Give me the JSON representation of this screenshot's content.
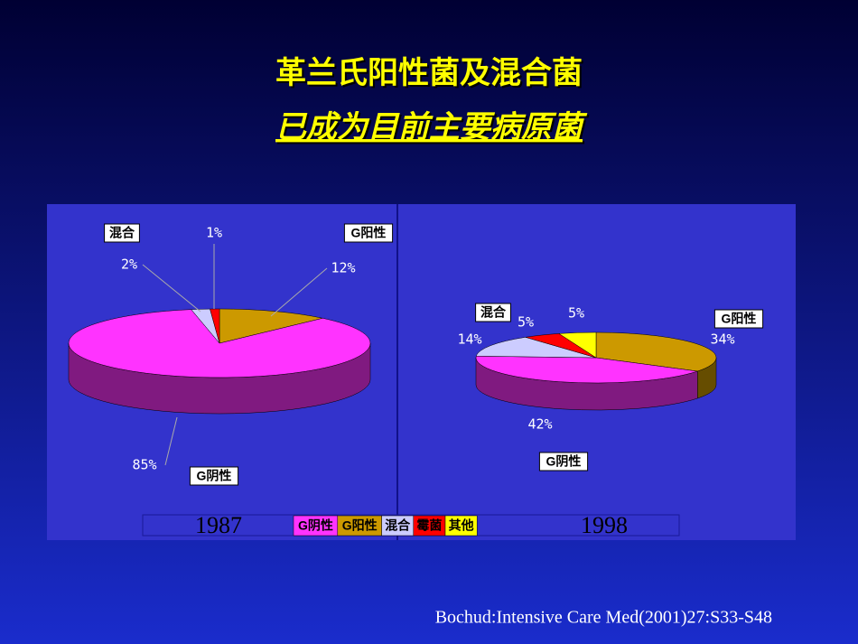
{
  "title": [
    "革兰氏阳性菌及混合菌",
    "已成为目前主要病原菌"
  ],
  "citation": "Bochud:Intensive Care Med(2001)27:S33-S48",
  "legend": [
    {
      "name": "G阴性",
      "color": "#ff33ff"
    },
    {
      "name": "G阳性",
      "color": "#cc9900"
    },
    {
      "name": "混合",
      "color": "#ccccff"
    },
    {
      "name": "霉菌",
      "color": "#ff0000"
    },
    {
      "name": "其他",
      "color": "#ffff00"
    }
  ],
  "chart_data": [
    {
      "type": "pie",
      "title": "1987",
      "categories": [
        "G阳性",
        "G阴性",
        "混合",
        null
      ],
      "values": [
        12,
        85,
        2,
        1
      ],
      "value_labels": [
        "12%",
        "85%",
        "2%",
        "1%"
      ],
      "colors": [
        "#cc9900",
        "#ff33ff",
        "#ccccff",
        "#ff0000"
      ]
    },
    {
      "type": "pie",
      "title": "1998",
      "categories": [
        "G阳性",
        "G阴性",
        "混合",
        null,
        null
      ],
      "values": [
        34,
        42,
        14,
        5,
        5
      ],
      "value_labels": [
        "34%",
        "42%",
        "14%",
        "5%",
        "5%"
      ],
      "colors": [
        "#cc9900",
        "#ff33ff",
        "#ccccff",
        "#ff0000",
        "#ffff00"
      ]
    }
  ]
}
